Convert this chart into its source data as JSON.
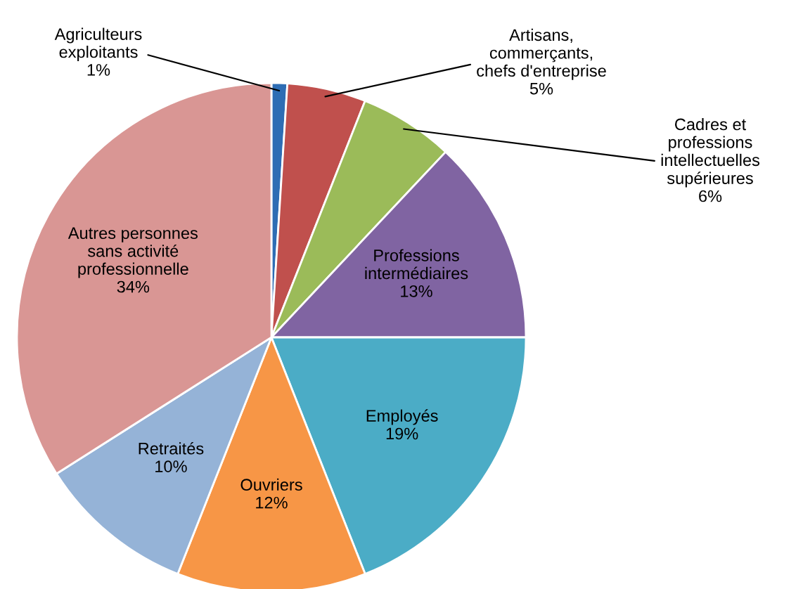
{
  "chart_data": {
    "type": "pie",
    "categories": [
      "Agriculteurs\nexploitants",
      "Artisans,\ncommerçants,\nchefs d'entreprise",
      "Cadres et\nprofessions\nintellectuelles\nsupérieures",
      "Professions\nintermédiaires",
      "Employés",
      "Ouvriers",
      "Retraités",
      "Autres personnes\nsans activité\nprofessionnelle"
    ],
    "values": [
      1,
      5,
      6,
      13,
      19,
      12,
      10,
      34
    ],
    "value_labels": [
      "1%",
      "5%",
      "6%",
      "13%",
      "19%",
      "12%",
      "10%",
      "34%"
    ],
    "colors": [
      "#2e6db4",
      "#c0504d",
      "#9bbb59",
      "#8064a2",
      "#4bacc6",
      "#f79646",
      "#95b3d7",
      "#d99694"
    ],
    "legend": false
  }
}
